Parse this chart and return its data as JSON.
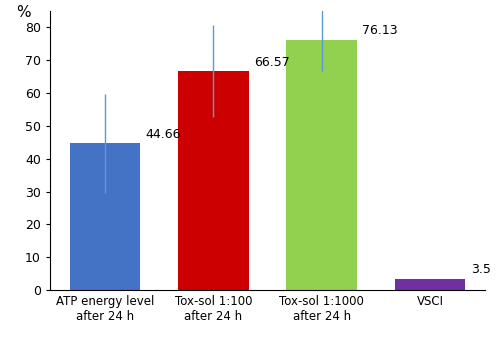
{
  "categories": [
    "ATP energy level\nafter 24 h",
    "Tox-sol 1:100\nafter 24 h",
    "Tox-sol 1:1000\nafter 24 h",
    "VSCI"
  ],
  "values": [
    44.66,
    66.57,
    76.13,
    3.5
  ],
  "errors_upper": [
    15.0,
    14.0,
    9.5,
    0
  ],
  "errors_lower": [
    15.0,
    14.0,
    9.5,
    0
  ],
  "bar_colors": [
    "#4472C4",
    "#CC0000",
    "#92D050",
    "#7030A0"
  ],
  "value_labels": [
    "44.66",
    "66.57",
    "76.13",
    "3.5"
  ],
  "ylabel": "%",
  "ylim": [
    0,
    85
  ],
  "yticks": [
    0,
    10,
    20,
    30,
    40,
    50,
    60,
    70,
    80
  ],
  "background_color": "#ffffff",
  "bar_width": 0.65,
  "errorbar_color": "#5B9BD5",
  "errorbar_linewidth": 1.0
}
